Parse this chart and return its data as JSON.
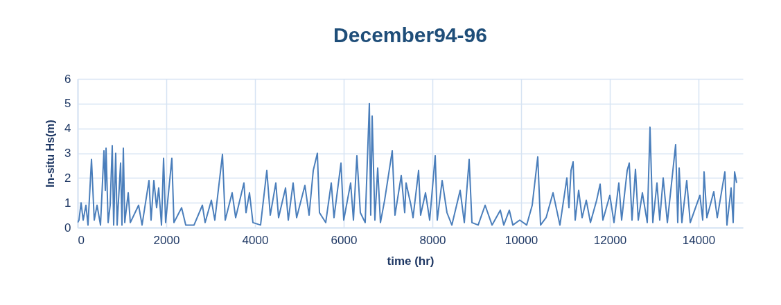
{
  "chart_data": {
    "type": "line",
    "title": "December94-96",
    "xlabel": "time (hr)",
    "ylabel": "In-situ Hs(m)",
    "xlim": [
      0,
      15000
    ],
    "xticks": [
      0,
      2000,
      4000,
      6000,
      8000,
      10000,
      12000,
      14000
    ],
    "ylim": [
      0,
      6
    ],
    "yticks": [
      0,
      1,
      2,
      3,
      4,
      5,
      6
    ],
    "grid": true,
    "marker": "none",
    "line_style": "solid",
    "series": [
      {
        "color": "#4a7ebb",
        "x": [
          0,
          31,
          78,
          125,
          188,
          234,
          313,
          375,
          438,
          516,
          563,
          594,
          625,
          641,
          688,
          734,
          781,
          813,
          859,
          891,
          969,
          1000,
          1031,
          1063,
          1141,
          1188,
          1375,
          1453,
          1609,
          1656,
          1719,
          1781,
          1828,
          1891,
          1938,
          1984,
          2125,
          2172,
          2344,
          2438,
          2625,
          2813,
          2875,
          3016,
          3094,
          3266,
          3328,
          3484,
          3563,
          3750,
          3797,
          3875,
          3953,
          4125,
          4266,
          4344,
          4469,
          4531,
          4688,
          4750,
          4859,
          4938,
          5125,
          5219,
          5313,
          5406,
          5453,
          5594,
          5719,
          5781,
          5938,
          6000,
          6156,
          6219,
          6297,
          6375,
          6484,
          6578,
          6609,
          6641,
          6703,
          6766,
          6828,
          6922,
          7094,
          7156,
          7297,
          7375,
          7406,
          7516,
          7563,
          7688,
          7734,
          7844,
          7938,
          8063,
          8109,
          8219,
          8328,
          8438,
          8625,
          8719,
          8828,
          8891,
          9031,
          9188,
          9344,
          9531,
          9609,
          9734,
          9813,
          9969,
          10125,
          10250,
          10375,
          10438,
          10563,
          10719,
          10875,
          11031,
          11078,
          11125,
          11172,
          11219,
          11297,
          11375,
          11469,
          11563,
          11703,
          11781,
          11844,
          12000,
          12094,
          12203,
          12266,
          12391,
          12438,
          12500,
          12578,
          12641,
          12734,
          12844,
          12906,
          12969,
          13063,
          13125,
          13203,
          13297,
          13484,
          13531,
          13563,
          13625,
          13734,
          13813,
          14031,
          14094,
          14125,
          14188,
          14344,
          14422,
          14594,
          14641,
          14734,
          14781,
          14813,
          14859
        ],
        "values": [
          0.2,
          0.3,
          1.0,
          0.3,
          0.9,
          0.1,
          2.75,
          0.3,
          0.9,
          0.1,
          1.9,
          3.1,
          1.5,
          3.2,
          0.2,
          0.9,
          3.3,
          0.1,
          3.0,
          0.1,
          2.6,
          0.1,
          3.2,
          0.2,
          1.4,
          0.2,
          0.9,
          0.1,
          1.9,
          0.3,
          1.9,
          0.8,
          1.6,
          0.1,
          2.8,
          0.2,
          2.8,
          0.2,
          0.8,
          0.1,
          0.1,
          0.9,
          0.2,
          1.1,
          0.3,
          2.95,
          0.3,
          1.4,
          0.4,
          1.8,
          0.6,
          1.4,
          0.2,
          0.1,
          2.3,
          0.5,
          1.8,
          0.4,
          1.6,
          0.3,
          1.8,
          0.4,
          1.7,
          0.5,
          2.3,
          3.0,
          0.6,
          0.2,
          1.8,
          0.4,
          2.6,
          0.3,
          1.8,
          0.3,
          2.9,
          0.6,
          0.2,
          5.0,
          0.5,
          4.5,
          0.3,
          2.4,
          0.2,
          1.1,
          3.1,
          0.5,
          2.1,
          0.6,
          1.8,
          0.9,
          0.4,
          2.3,
          0.5,
          1.4,
          0.3,
          2.9,
          0.3,
          1.9,
          0.6,
          0.1,
          1.5,
          0.2,
          2.75,
          0.2,
          0.1,
          0.9,
          0.1,
          0.7,
          0.1,
          0.7,
          0.1,
          0.3,
          0.1,
          0.9,
          2.85,
          0.1,
          0.4,
          1.4,
          0.1,
          2.0,
          0.8,
          2.3,
          2.65,
          0.3,
          1.5,
          0.4,
          1.1,
          0.2,
          1.1,
          1.75,
          0.3,
          1.3,
          0.2,
          1.8,
          0.3,
          2.3,
          2.6,
          0.3,
          2.35,
          0.3,
          1.4,
          0.2,
          4.05,
          0.2,
          1.8,
          0.3,
          2.0,
          0.2,
          3.35,
          0.2,
          2.4,
          0.2,
          1.9,
          0.2,
          1.3,
          0.3,
          2.25,
          0.4,
          1.45,
          0.4,
          2.25,
          0.1,
          1.6,
          0.2,
          2.25,
          1.8
        ]
      }
    ]
  }
}
